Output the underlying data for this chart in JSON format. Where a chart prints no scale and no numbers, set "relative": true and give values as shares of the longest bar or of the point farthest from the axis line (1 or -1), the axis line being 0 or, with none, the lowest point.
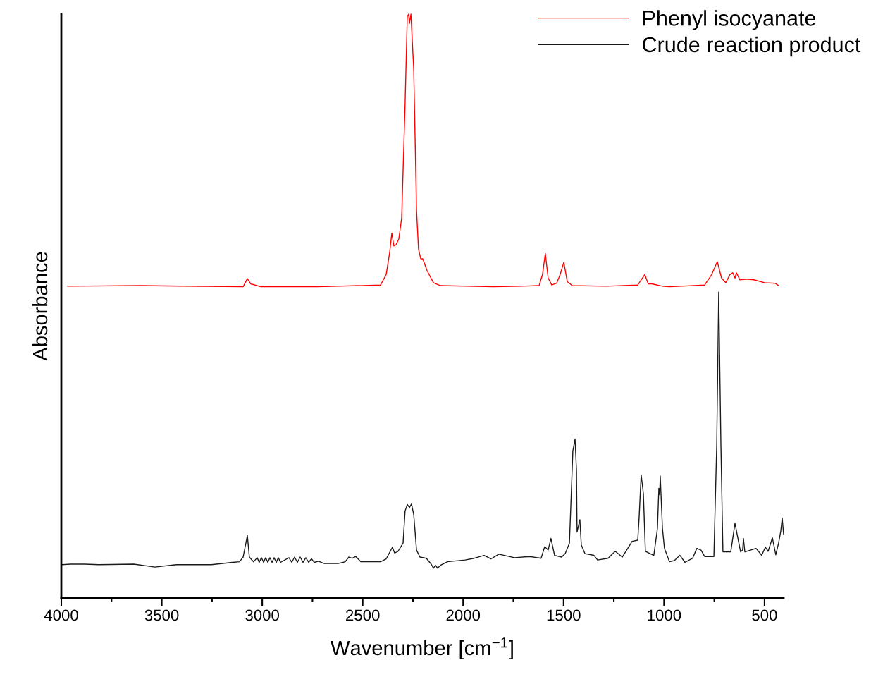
{
  "chart_data": {
    "type": "line",
    "relative": true,
    "xlabel": "Wavenumber [cm$^{−1}$]",
    "ylabel": "Absorbance",
    "xlim": [
      4000,
      405
    ],
    "xticks": [
      4000,
      {
        "value": 3750,
        "label": null
      },
      3500,
      {
        "value": 3250,
        "label": null
      },
      3000,
      {
        "value": 2750,
        "label": null
      },
      2500,
      {
        "value": 2250,
        "label": null
      },
      2000,
      {
        "value": 1750,
        "label": null
      },
      1500,
      {
        "value": 1250,
        "label": null
      },
      1000,
      {
        "value": 750,
        "label": null
      },
      500
    ],
    "legend": "top right",
    "grid": false,
    "tick_labels": "x",
    "series": [
      {
        "name": "Phenyl isocyanate",
        "color": "#ff0000",
        "x": [
          3968,
          3604,
          3393,
          3095,
          3074,
          3057,
          3007,
          2727,
          2411,
          2383,
          2366,
          2355,
          2345,
          2334,
          2320,
          2306,
          2289,
          2278,
          2271,
          2267,
          2260,
          2246,
          2232,
          2222,
          2211,
          2201,
          2180,
          2148,
          2113,
          1850,
          1710,
          1622,
          1605,
          1591,
          1577,
          1559,
          1535,
          1517,
          1499,
          1482,
          1457,
          1289,
          1131,
          1096,
          1079,
          1061,
          1008,
          973,
          798,
          763,
          735,
          714,
          693,
          672,
          658,
          647,
          640,
          623,
          588,
          553,
          500,
          447,
          430
        ],
        "values": [
          0.534,
          0.535,
          0.534,
          0.533,
          0.547,
          0.538,
          0.533,
          0.533,
          0.536,
          0.554,
          0.591,
          0.625,
          0.603,
          0.605,
          0.615,
          0.651,
          0.845,
          0.996,
          1.0,
          0.984,
          1.0,
          0.906,
          0.663,
          0.597,
          0.581,
          0.581,
          0.561,
          0.54,
          0.535,
          0.533,
          0.534,
          0.535,
          0.554,
          0.59,
          0.548,
          0.536,
          0.539,
          0.554,
          0.575,
          0.542,
          0.535,
          0.534,
          0.536,
          0.554,
          0.538,
          0.538,
          0.534,
          0.533,
          0.536,
          0.554,
          0.576,
          0.548,
          0.54,
          0.554,
          0.557,
          0.548,
          0.557,
          0.545,
          0.546,
          0.545,
          0.54,
          0.539,
          0.535
        ]
      },
      {
        "name": "Crude reaction product",
        "color": "#1a1a1a",
        "x": [
          3996,
          3954,
          3884,
          3814,
          3639,
          3534,
          3428,
          3253,
          3148,
          3113,
          3095,
          3074,
          3064,
          3043,
          3025,
          3015,
          3004,
          2993,
          2983,
          2972,
          2962,
          2951,
          2941,
          2930,
          2920,
          2909,
          2867,
          2853,
          2839,
          2825,
          2811,
          2797,
          2783,
          2769,
          2755,
          2741,
          2720,
          2692,
          2622,
          2587,
          2569,
          2552,
          2534,
          2509,
          2411,
          2383,
          2352,
          2341,
          2324,
          2299,
          2289,
          2278,
          2267,
          2257,
          2246,
          2232,
          2215,
          2183,
          2159,
          2148,
          2138,
          2127,
          2113,
          2078,
          1990,
          1945,
          1896,
          1861,
          1822,
          1745,
          1668,
          1612,
          1594,
          1577,
          1563,
          1545,
          1510,
          1492,
          1471,
          1454,
          1443,
          1436,
          1433,
          1419,
          1412,
          1394,
          1349,
          1331,
          1279,
          1243,
          1208,
          1159,
          1131,
          1124,
          1114,
          1103,
          1093,
          1051,
          1033,
          1026,
          1022,
          1019,
          1008,
          998,
          973,
          949,
          921,
          896,
          858,
          837,
          816,
          798,
          752,
          738,
          728,
          717,
          707,
          668,
          647,
          633,
          619,
          609,
          605,
          598,
          542,
          514,
          496,
          482,
          461,
          444,
          430,
          419,
          412,
          405
        ],
        "values": [
          0.057,
          0.058,
          0.058,
          0.057,
          0.058,
          0.053,
          0.057,
          0.057,
          0.061,
          0.062,
          0.07,
          0.107,
          0.07,
          0.062,
          0.069,
          0.061,
          0.069,
          0.061,
          0.069,
          0.061,
          0.069,
          0.061,
          0.069,
          0.061,
          0.069,
          0.061,
          0.069,
          0.061,
          0.07,
          0.061,
          0.07,
          0.061,
          0.069,
          0.061,
          0.067,
          0.061,
          0.063,
          0.059,
          0.059,
          0.062,
          0.07,
          0.068,
          0.071,
          0.062,
          0.062,
          0.067,
          0.087,
          0.077,
          0.08,
          0.094,
          0.149,
          0.16,
          0.155,
          0.161,
          0.143,
          0.082,
          0.07,
          0.068,
          0.058,
          0.051,
          0.056,
          0.051,
          0.056,
          0.062,
          0.065,
          0.068,
          0.073,
          0.067,
          0.075,
          0.069,
          0.071,
          0.068,
          0.088,
          0.082,
          0.102,
          0.073,
          0.07,
          0.076,
          0.094,
          0.252,
          0.272,
          0.219,
          0.113,
          0.134,
          0.091,
          0.076,
          0.073,
          0.065,
          0.068,
          0.08,
          0.07,
          0.097,
          0.099,
          0.139,
          0.211,
          0.179,
          0.08,
          0.073,
          0.119,
          0.188,
          0.177,
          0.209,
          0.119,
          0.085,
          0.062,
          0.064,
          0.073,
          0.061,
          0.068,
          0.085,
          0.082,
          0.071,
          0.071,
          0.26,
          0.524,
          0.26,
          0.079,
          0.079,
          0.128,
          0.103,
          0.079,
          0.082,
          0.102,
          0.079,
          0.085,
          0.073,
          0.087,
          0.08,
          0.103,
          0.074,
          0.094,
          0.115,
          0.137,
          0.109
        ]
      }
    ]
  }
}
